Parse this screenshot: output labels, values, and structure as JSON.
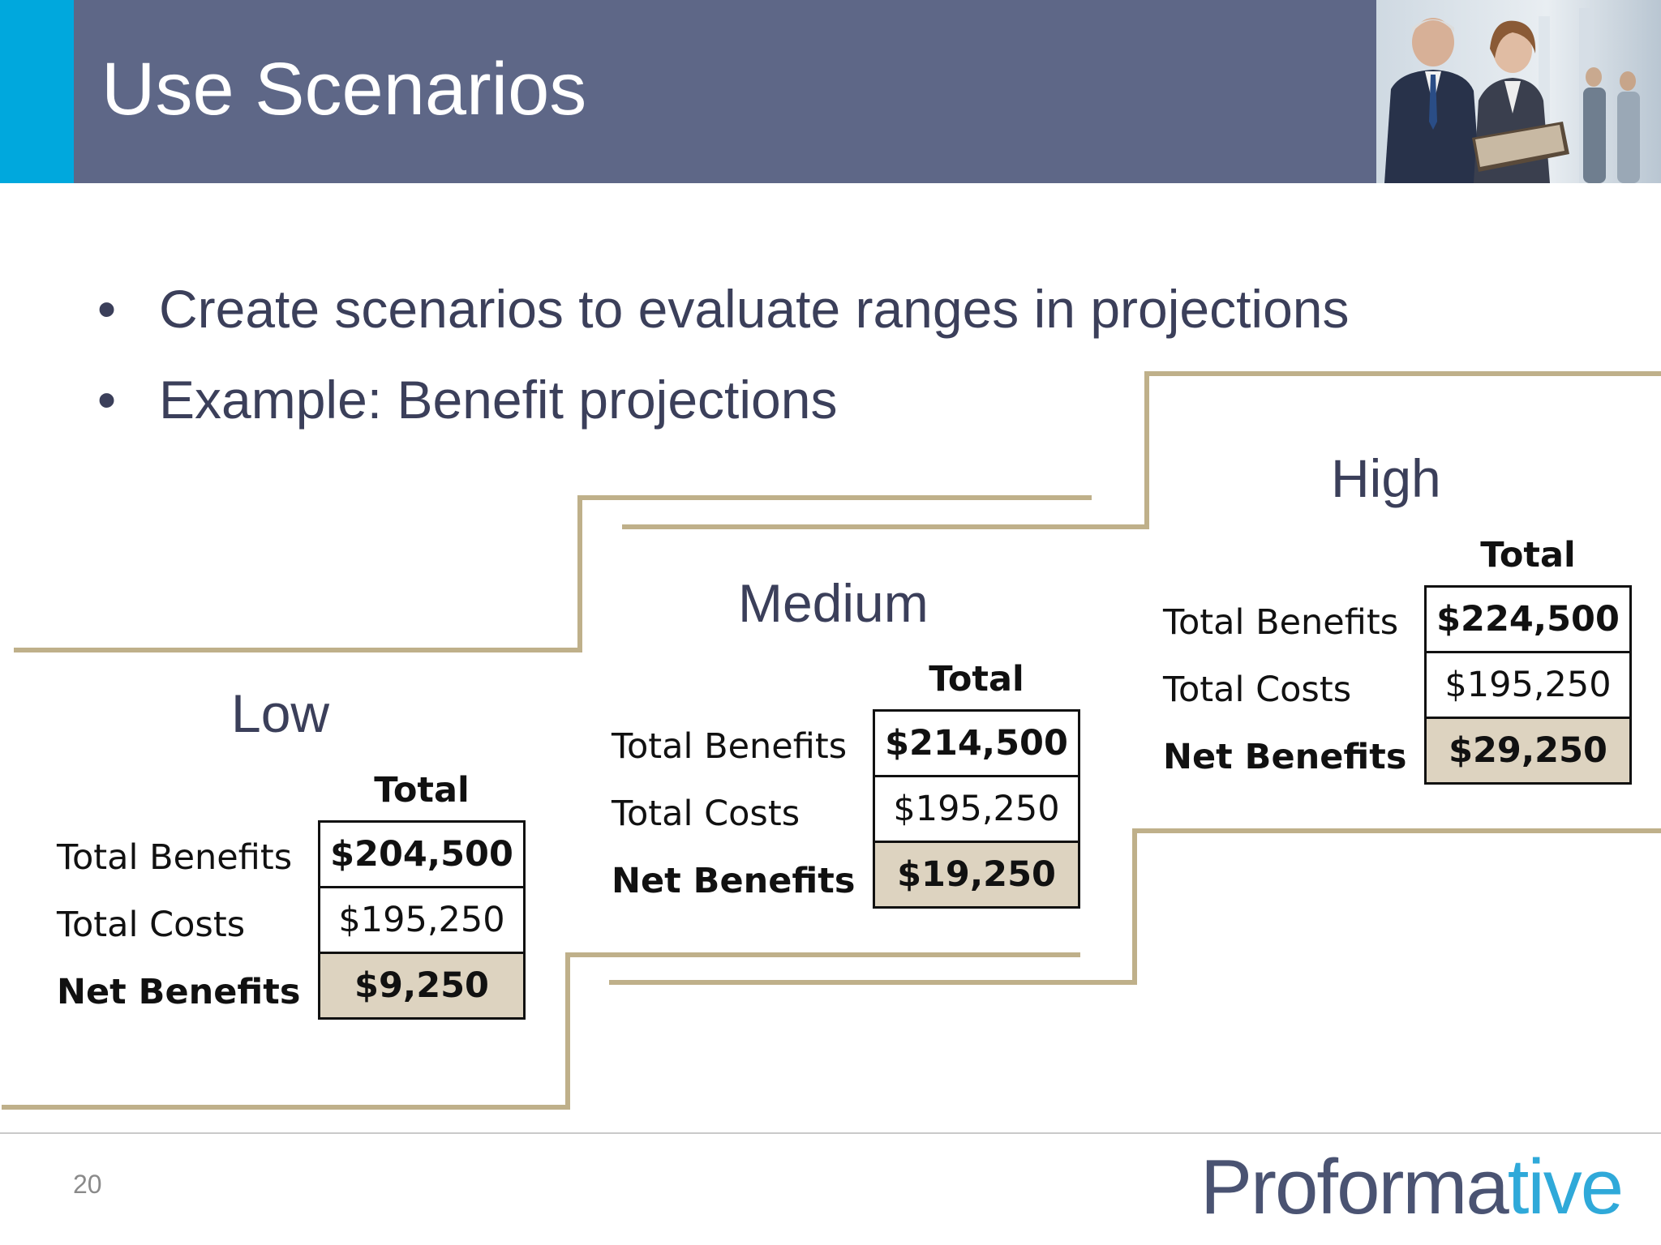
{
  "slide": {
    "title": "Use Scenarios",
    "page_number": "20"
  },
  "bullets": [
    "Create scenarios to evaluate ranges in projections",
    "Example: Benefit projections"
  ],
  "scenarios": [
    {
      "name": "Low",
      "column_header": "Total",
      "rows": [
        {
          "label": "Total Benefits",
          "value": "$204,500"
        },
        {
          "label": "Total Costs",
          "value": "$195,250"
        },
        {
          "label": "Net Benefits",
          "value": "$9,250"
        }
      ]
    },
    {
      "name": "Medium",
      "column_header": "Total",
      "rows": [
        {
          "label": "Total Benefits",
          "value": "$214,500"
        },
        {
          "label": "Total Costs",
          "value": "$195,250"
        },
        {
          "label": "Net Benefits",
          "value": "$19,250"
        }
      ]
    },
    {
      "name": "High",
      "column_header": "Total",
      "rows": [
        {
          "label": "Total Benefits",
          "value": "$224,500"
        },
        {
          "label": "Total Costs",
          "value": "$195,250"
        },
        {
          "label": "Net Benefits",
          "value": "$29,250"
        }
      ]
    }
  ],
  "logo": {
    "part1": "Proforma",
    "part2": "tive"
  },
  "colors": {
    "title_bar": "#5e6787",
    "accent": "#00a8dd",
    "step_line": "#bfb08a",
    "net_cell": "#ddd3c0"
  }
}
